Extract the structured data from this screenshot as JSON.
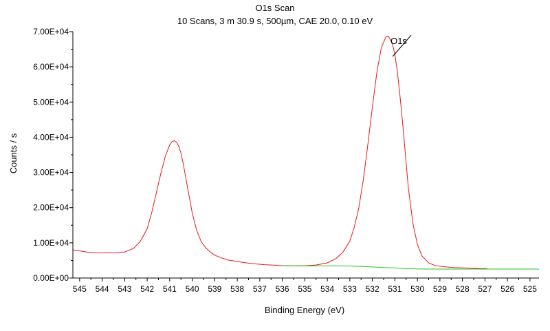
{
  "chart_data": {
    "type": "line",
    "title": "O1s Scan",
    "subtitle": "10 Scans,  3 m 30.9 s,  500µm,  CAE 20.0,  0.10 eV",
    "xlabel": "Binding Energy (eV)",
    "ylabel": "Counts / s",
    "xlim": [
      545.3,
      524.6
    ],
    "ylim": [
      0,
      70000
    ],
    "x_reversed": true,
    "grid": false,
    "x_ticks": [
      {
        "value": 545,
        "label": "545"
      },
      {
        "value": 544,
        "label": "544"
      },
      {
        "value": 543,
        "label": "543"
      },
      {
        "value": 542,
        "label": "542"
      },
      {
        "value": 541,
        "label": "541"
      },
      {
        "value": 540,
        "label": "540"
      },
      {
        "value": 539,
        "label": "539"
      },
      {
        "value": 538,
        "label": "538"
      },
      {
        "value": 537,
        "label": "537"
      },
      {
        "value": 536,
        "label": "536"
      },
      {
        "value": 535,
        "label": "535"
      },
      {
        "value": 534,
        "label": "534"
      },
      {
        "value": 533,
        "label": "533"
      },
      {
        "value": 532,
        "label": "532"
      },
      {
        "value": 531,
        "label": "531"
      },
      {
        "value": 530,
        "label": "530"
      },
      {
        "value": 529,
        "label": "529"
      },
      {
        "value": 528,
        "label": "528"
      },
      {
        "value": 527,
        "label": "527"
      },
      {
        "value": 526,
        "label": "526"
      },
      {
        "value": 525,
        "label": "525"
      }
    ],
    "y_ticks": [
      {
        "value": 0,
        "label": "0.00E+00"
      },
      {
        "value": 10000,
        "label": "1.00E+04"
      },
      {
        "value": 20000,
        "label": "2.00E+04"
      },
      {
        "value": 30000,
        "label": "3.00E+04"
      },
      {
        "value": 40000,
        "label": "4.00E+04"
      },
      {
        "value": 50000,
        "label": "5.00E+04"
      },
      {
        "value": 60000,
        "label": "6.00E+04"
      },
      {
        "value": 70000,
        "label": "7.00E+04"
      }
    ],
    "series": [
      {
        "color": "#e8161b",
        "x": [
          545.3,
          544.9,
          544.6,
          544.3,
          544,
          543.7,
          543.4,
          543,
          542.6,
          542.3,
          542,
          541.8,
          541.6,
          541.4,
          541.2,
          541,
          540.9,
          540.8,
          540.7,
          540.6,
          540.5,
          540.4,
          540.3,
          540.2,
          540.1,
          540,
          539.8,
          539.6,
          539.4,
          539.2,
          539,
          538.7,
          538.4,
          538,
          537.6,
          537.2,
          536.8,
          536.4,
          536,
          535.5,
          535,
          534.5,
          534,
          533.6,
          533.3,
          533,
          532.8,
          532.6,
          532.4,
          532.2,
          532,
          531.8,
          531.6,
          531.4,
          531.3,
          531.2,
          531.1,
          531,
          530.9,
          530.8,
          530.7,
          530.6,
          530.5,
          530.4,
          530.2,
          530,
          529.8,
          529.5,
          529.2,
          528.8,
          528.4,
          528,
          527.6,
          527.2,
          526.9
        ],
        "y": [
          8000,
          7600,
          7300,
          7200,
          7150,
          7150,
          7200,
          7400,
          8400,
          10500,
          14000,
          18500,
          24000,
          29500,
          34500,
          37800,
          38700,
          39000,
          38600,
          37500,
          35500,
          32500,
          29000,
          25500,
          22000,
          18500,
          13500,
          10300,
          8600,
          7400,
          6500,
          5700,
          5100,
          4700,
          4300,
          4000,
          3800,
          3650,
          3500,
          3450,
          3500,
          3700,
          4300,
          5600,
          7400,
          10500,
          14500,
          20000,
          28000,
          38000,
          48500,
          58500,
          65500,
          68500,
          68700,
          67800,
          66200,
          63500,
          59000,
          53500,
          47000,
          40000,
          32500,
          25500,
          15500,
          9600,
          6300,
          4300,
          3500,
          3200,
          3000,
          2900,
          2800,
          2700,
          2650
        ]
      },
      {
        "color": "#22c522",
        "x": [
          536,
          535.5,
          535,
          534.5,
          534,
          533.5,
          533,
          532.5,
          532,
          531.5,
          531,
          530.5,
          530,
          529.5,
          529,
          528.5,
          528,
          527.5,
          527,
          526.5,
          526,
          525.5,
          525,
          524.6
        ],
        "y": [
          3500,
          3450,
          3450,
          3450,
          3450,
          3450,
          3400,
          3300,
          3150,
          3000,
          2850,
          2700,
          2600,
          2550,
          2550,
          2550,
          2550,
          2550,
          2550,
          2550,
          2550,
          2550,
          2550,
          2550
        ]
      }
    ],
    "annotations": [
      {
        "text": "O1s",
        "x": 531.1,
        "y": 64500
      }
    ]
  }
}
